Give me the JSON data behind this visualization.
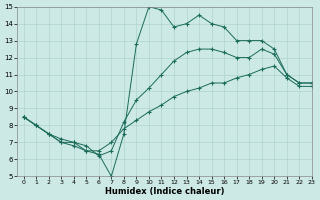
{
  "xlabel": "Humidex (Indice chaleur)",
  "xlim": [
    -0.5,
    23
  ],
  "ylim": [
    5,
    15
  ],
  "yticks": [
    5,
    6,
    7,
    8,
    9,
    10,
    11,
    12,
    13,
    14,
    15
  ],
  "xticks": [
    0,
    1,
    2,
    3,
    4,
    5,
    6,
    7,
    8,
    9,
    10,
    11,
    12,
    13,
    14,
    15,
    16,
    17,
    18,
    19,
    20,
    21,
    22,
    23
  ],
  "bg_color": "#cce9e5",
  "line_color": "#1a6b5a",
  "grid_color": "#afd4ce",
  "line1_y": [
    8.5,
    8.0,
    7.5,
    7.0,
    6.8,
    6.5,
    6.3,
    5.0,
    7.5,
    12.8,
    15.0,
    14.8,
    13.8,
    14.0,
    14.5,
    14.0,
    13.8,
    13.0,
    13.0,
    13.0,
    12.5,
    11.0,
    10.5,
    10.5
  ],
  "line2_y": [
    8.5,
    8.0,
    7.5,
    7.2,
    7.0,
    6.8,
    6.2,
    6.5,
    8.2,
    9.5,
    10.2,
    11.0,
    11.8,
    12.3,
    12.5,
    12.5,
    12.3,
    12.0,
    12.0,
    12.5,
    12.2,
    11.0,
    10.5,
    10.5
  ],
  "line3_y": [
    8.5,
    8.0,
    7.5,
    7.0,
    7.0,
    6.5,
    6.5,
    7.0,
    7.8,
    8.3,
    8.8,
    9.2,
    9.7,
    10.0,
    10.2,
    10.5,
    10.5,
    10.8,
    11.0,
    11.3,
    11.5,
    10.8,
    10.3,
    10.3
  ]
}
